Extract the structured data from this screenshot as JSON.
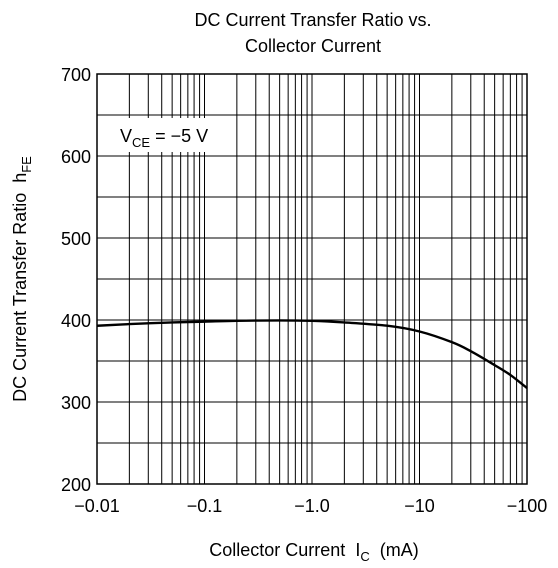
{
  "chart_data": {
    "type": "line",
    "title_line1": "DC Current Transfer Ratio vs.",
    "title_line2": "Collector Current",
    "xlabel": "Collector Current",
    "xlabel_symbol": "I",
    "xlabel_sub": "C",
    "xlabel_unit": "(mA)",
    "ylabel": "DC Current Transfer Ratio",
    "ylabel_symbol": "h",
    "ylabel_sub": "FE",
    "x_scale": "log",
    "x_range": [
      -0.01,
      -100
    ],
    "ylim": [
      200,
      700
    ],
    "grid": true,
    "x_ticks": [
      -0.01,
      -0.1,
      -1.0,
      -10,
      -100
    ],
    "x_tick_labels": [
      "−0.01",
      "−0.1",
      "−1.0",
      "−10",
      "−100"
    ],
    "y_ticks": [
      200,
      300,
      400,
      500,
      600,
      700
    ],
    "y_tick_labels": [
      "200",
      "300",
      "400",
      "500",
      "600",
      "700"
    ],
    "annotation": {
      "symbol": "V",
      "sub": "CE",
      "text": " = −5 V"
    },
    "series": [
      {
        "x": [
          -0.01,
          -0.02,
          -0.05,
          -0.1,
          -0.2,
          -0.5,
          -1.0,
          -2.0,
          -5.0,
          -10,
          -20,
          -30,
          -50,
          -70,
          -100
        ],
        "y": [
          393,
          395,
          397,
          398,
          399,
          399.5,
          399,
          397,
          393,
          386,
          373,
          362,
          345,
          333,
          317
        ]
      }
    ]
  }
}
